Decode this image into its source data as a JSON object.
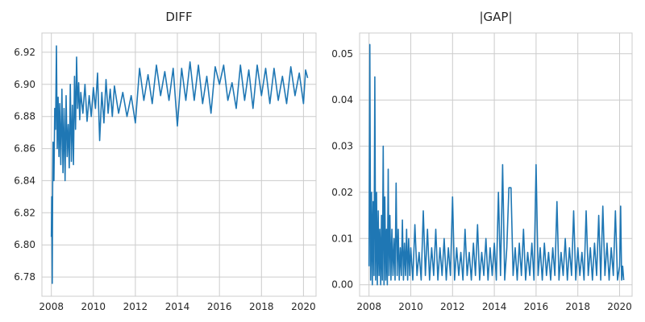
{
  "chart_data": [
    {
      "type": "line",
      "title": "DIFF",
      "xlabel": "",
      "ylabel": "",
      "xlim": [
        2007.55,
        2020.6
      ],
      "ylim": [
        6.768,
        6.932
      ],
      "xticks": [
        2008,
        2010,
        2012,
        2014,
        2016,
        2018,
        2020
      ],
      "xtick_labels": [
        "2008",
        "2010",
        "2012",
        "2014",
        "2016",
        "2018",
        "2020"
      ],
      "yticks": [
        6.78,
        6.8,
        6.82,
        6.84,
        6.86,
        6.88,
        6.9,
        6.92
      ],
      "ytick_labels": [
        "6.78",
        "6.80",
        "6.82",
        "6.84",
        "6.86",
        "6.88",
        "6.90",
        "6.92"
      ],
      "grid": true,
      "color": "#1f77b4",
      "series": [
        {
          "x": [
            2008.0,
            2008.02,
            2008.04,
            2008.06,
            2008.08,
            2008.12,
            2008.16,
            2008.2,
            2008.24,
            2008.28,
            2008.32,
            2008.36,
            2008.4,
            2008.45,
            2008.5,
            2008.55,
            2008.6,
            2008.65,
            2008.7,
            2008.75,
            2008.8,
            2008.85,
            2008.9,
            2008.95,
            2009.0,
            2009.05,
            2009.1,
            2009.15,
            2009.2,
            2009.25,
            2009.3,
            2009.35,
            2009.4,
            2009.5,
            2009.6,
            2009.7,
            2009.8,
            2009.9,
            2010.0,
            2010.1,
            2010.2,
            2010.3,
            2010.4,
            2010.5,
            2010.6,
            2010.7,
            2010.8,
            2010.9,
            2011.0,
            2011.2,
            2011.4,
            2011.6,
            2011.8,
            2012.0,
            2012.2,
            2012.4,
            2012.6,
            2012.8,
            2013.0,
            2013.2,
            2013.4,
            2013.6,
            2013.8,
            2014.0,
            2014.2,
            2014.4,
            2014.6,
            2014.8,
            2015.0,
            2015.2,
            2015.4,
            2015.6,
            2015.8,
            2016.0,
            2016.2,
            2016.4,
            2016.6,
            2016.8,
            2017.0,
            2017.2,
            2017.4,
            2017.6,
            2017.8,
            2018.0,
            2018.2,
            2018.4,
            2018.6,
            2018.8,
            2019.0,
            2019.2,
            2019.4,
            2019.6,
            2019.8,
            2020.0,
            2020.1,
            2020.2
          ],
          "y": [
            6.805,
            6.83,
            6.776,
            6.837,
            6.864,
            6.84,
            6.885,
            6.872,
            6.924,
            6.86,
            6.892,
            6.855,
            6.888,
            6.85,
            6.897,
            6.845,
            6.885,
            6.84,
            6.893,
            6.855,
            6.875,
            6.848,
            6.9,
            6.852,
            6.887,
            6.85,
            6.905,
            6.872,
            6.917,
            6.885,
            6.901,
            6.878,
            6.895,
            6.882,
            6.9,
            6.877,
            6.893,
            6.88,
            6.898,
            6.885,
            6.907,
            6.865,
            6.895,
            6.876,
            6.903,
            6.882,
            6.897,
            6.88,
            6.899,
            6.882,
            6.895,
            6.88,
            6.893,
            6.876,
            6.91,
            6.89,
            6.906,
            6.888,
            6.912,
            6.893,
            6.908,
            6.89,
            6.91,
            6.874,
            6.91,
            6.89,
            6.914,
            6.89,
            6.912,
            6.888,
            6.905,
            6.882,
            6.911,
            6.9,
            6.912,
            6.89,
            6.901,
            6.885,
            6.912,
            6.89,
            6.909,
            6.885,
            6.912,
            6.893,
            6.91,
            6.888,
            6.91,
            6.89,
            6.905,
            6.888,
            6.911,
            6.893,
            6.907,
            6.888,
            6.909,
            6.904
          ]
        }
      ]
    },
    {
      "type": "line",
      "title": "|GAP|",
      "xlabel": "",
      "ylabel": "",
      "xlim": [
        2007.55,
        2020.6
      ],
      "ylim": [
        -0.0025,
        0.0545
      ],
      "xticks": [
        2008,
        2010,
        2012,
        2014,
        2016,
        2018,
        2020
      ],
      "xtick_labels": [
        "2008",
        "2010",
        "2012",
        "2014",
        "2016",
        "2018",
        "2020"
      ],
      "yticks": [
        0.0,
        0.01,
        0.02,
        0.03,
        0.04,
        0.05
      ],
      "ytick_labels": [
        "0.00",
        "0.01",
        "0.02",
        "0.03",
        "0.04",
        "0.05"
      ],
      "grid": true,
      "color": "#1f77b4",
      "series": [
        {
          "x": [
            2008.0,
            2008.04,
            2008.08,
            2008.12,
            2008.16,
            2008.2,
            2008.24,
            2008.28,
            2008.32,
            2008.36,
            2008.4,
            2008.44,
            2008.48,
            2008.52,
            2008.56,
            2008.6,
            2008.64,
            2008.68,
            2008.72,
            2008.76,
            2008.8,
            2008.84,
            2008.88,
            2008.92,
            2008.96,
            2009.0,
            2009.05,
            2009.1,
            2009.15,
            2009.2,
            2009.25,
            2009.3,
            2009.35,
            2009.4,
            2009.45,
            2009.5,
            2009.55,
            2009.6,
            2009.65,
            2009.7,
            2009.75,
            2009.8,
            2009.85,
            2009.9,
            2009.95,
            2010.0,
            2010.1,
            2010.2,
            2010.3,
            2010.4,
            2010.5,
            2010.6,
            2010.7,
            2010.8,
            2010.9,
            2011.0,
            2011.1,
            2011.2,
            2011.3,
            2011.4,
            2011.5,
            2011.6,
            2011.7,
            2011.8,
            2011.9,
            2012.0,
            2012.1,
            2012.2,
            2012.3,
            2012.4,
            2012.5,
            2012.6,
            2012.7,
            2012.8,
            2012.9,
            2013.0,
            2013.1,
            2013.2,
            2013.3,
            2013.4,
            2013.5,
            2013.6,
            2013.7,
            2013.8,
            2013.9,
            2014.0,
            2014.1,
            2014.2,
            2014.3,
            2014.4,
            2014.5,
            2014.6,
            2014.7,
            2014.8,
            2014.9,
            2015.0,
            2015.1,
            2015.2,
            2015.3,
            2015.4,
            2015.5,
            2015.6,
            2015.7,
            2015.8,
            2015.9,
            2016.0,
            2016.1,
            2016.2,
            2016.3,
            2016.4,
            2016.5,
            2016.6,
            2016.7,
            2016.8,
            2016.9,
            2017.0,
            2017.1,
            2017.2,
            2017.3,
            2017.4,
            2017.5,
            2017.6,
            2017.7,
            2017.8,
            2017.9,
            2018.0,
            2018.1,
            2018.2,
            2018.3,
            2018.4,
            2018.5,
            2018.6,
            2018.7,
            2018.8,
            2018.9,
            2019.0,
            2019.1,
            2019.2,
            2019.3,
            2019.4,
            2019.5,
            2019.6,
            2019.7,
            2019.8,
            2019.9,
            2020.0,
            2020.05,
            2020.1,
            2020.15,
            2020.2
          ],
          "y": [
            0.004,
            0.052,
            0.001,
            0.02,
            0.0,
            0.018,
            0.002,
            0.045,
            0.001,
            0.02,
            0.0,
            0.016,
            0.002,
            0.012,
            0.0,
            0.015,
            0.001,
            0.03,
            0.0,
            0.019,
            0.001,
            0.012,
            0.0,
            0.025,
            0.002,
            0.015,
            0.001,
            0.012,
            0.002,
            0.01,
            0.001,
            0.022,
            0.002,
            0.012,
            0.001,
            0.008,
            0.002,
            0.014,
            0.001,
            0.009,
            0.002,
            0.012,
            0.001,
            0.01,
            0.002,
            0.008,
            0.001,
            0.013,
            0.002,
            0.007,
            0.001,
            0.016,
            0.002,
            0.012,
            0.001,
            0.008,
            0.002,
            0.012,
            0.001,
            0.008,
            0.002,
            0.01,
            0.001,
            0.008,
            0.002,
            0.019,
            0.001,
            0.008,
            0.002,
            0.007,
            0.001,
            0.012,
            0.002,
            0.007,
            0.001,
            0.009,
            0.002,
            0.013,
            0.001,
            0.007,
            0.002,
            0.01,
            0.001,
            0.008,
            0.002,
            0.009,
            0.001,
            0.02,
            0.002,
            0.026,
            0.001,
            0.008,
            0.021,
            0.021,
            0.002,
            0.008,
            0.001,
            0.009,
            0.002,
            0.012,
            0.001,
            0.007,
            0.002,
            0.009,
            0.001,
            0.026,
            0.002,
            0.008,
            0.001,
            0.009,
            0.002,
            0.007,
            0.001,
            0.008,
            0.002,
            0.018,
            0.001,
            0.007,
            0.002,
            0.01,
            0.001,
            0.008,
            0.002,
            0.016,
            0.001,
            0.008,
            0.002,
            0.007,
            0.001,
            0.016,
            0.002,
            0.008,
            0.001,
            0.009,
            0.002,
            0.015,
            0.001,
            0.017,
            0.002,
            0.009,
            0.001,
            0.008,
            0.002,
            0.016,
            0.001,
            0.004,
            0.017,
            0.001,
            0.004,
            0.001
          ]
        }
      ]
    }
  ]
}
